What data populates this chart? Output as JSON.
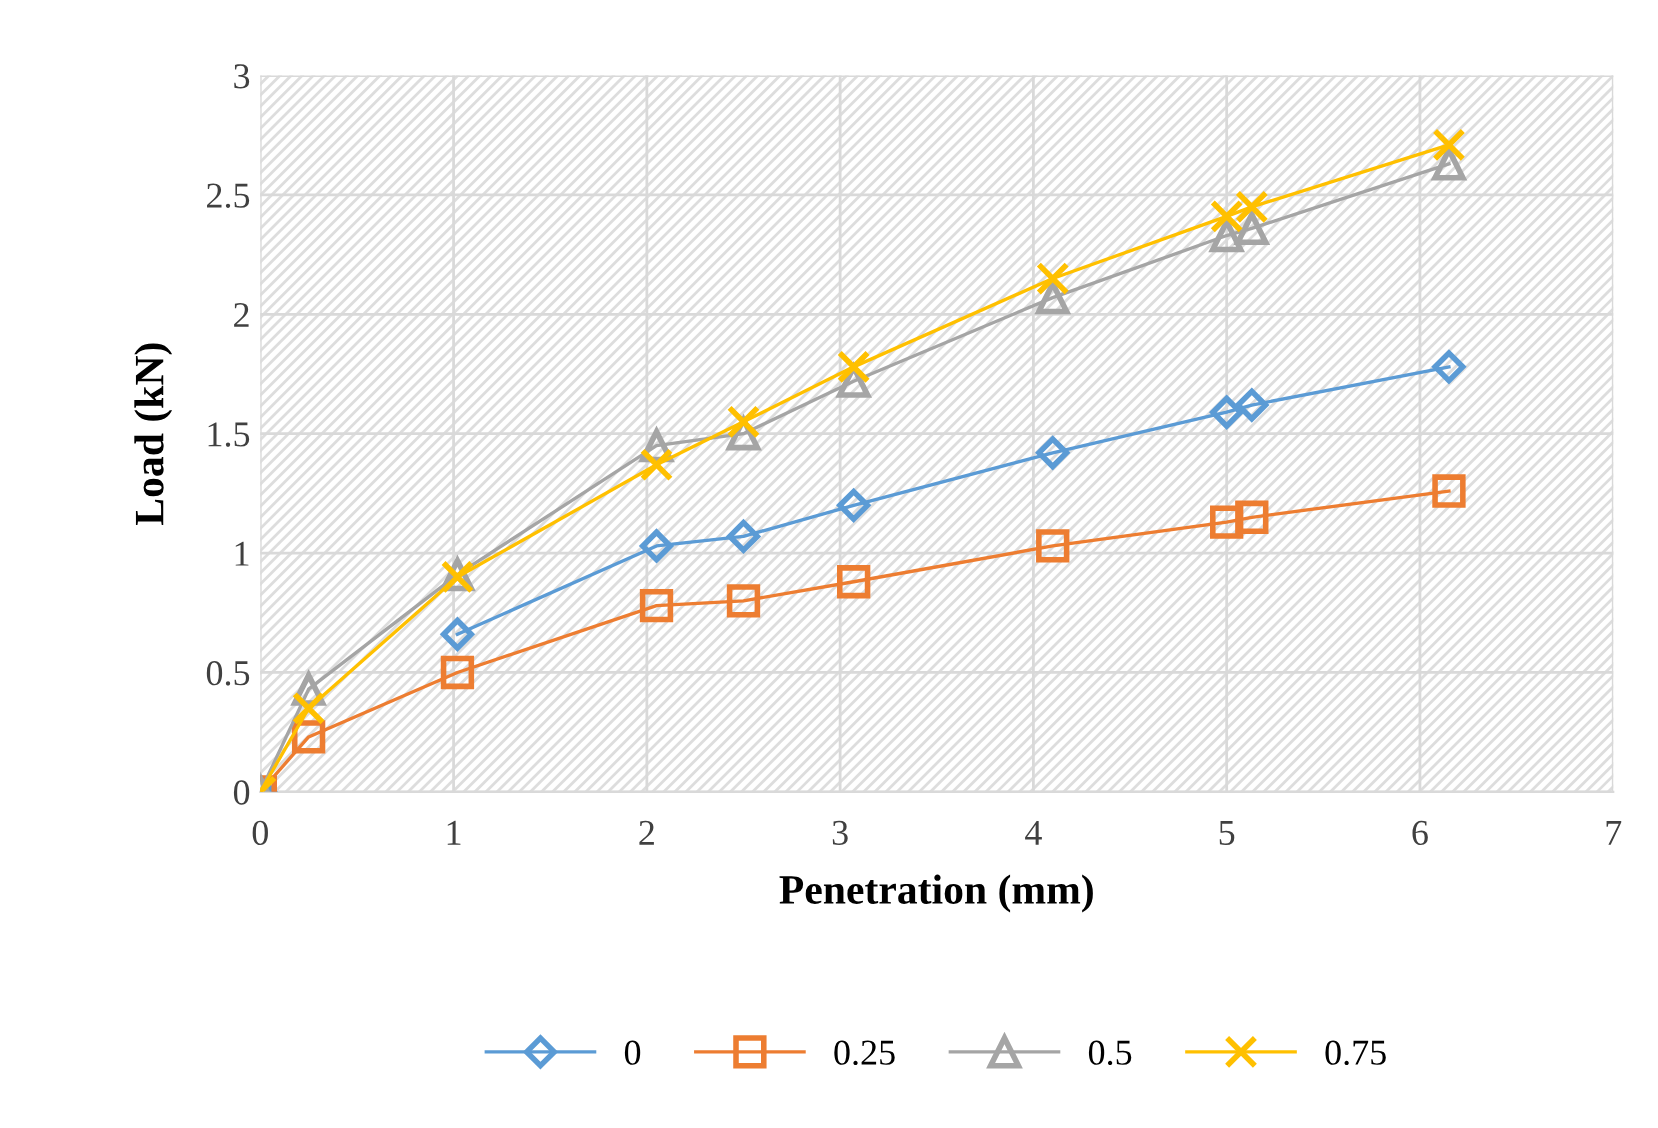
{
  "chart_data": {
    "type": "line",
    "xlabel": "Penetration (mm)",
    "ylabel": "Load (kN)",
    "x": [
      0,
      0.25,
      1.02,
      2.05,
      2.5,
      3.07,
      4.1,
      5.0,
      5.13,
      6.15
    ],
    "series": [
      {
        "name": "0",
        "color": "#5b9bd5",
        "marker": "diamond",
        "values": [
          0,
          null,
          0.66,
          1.03,
          1.07,
          1.2,
          1.42,
          1.59,
          1.62,
          1.78
        ]
      },
      {
        "name": "0.25",
        "color": "#ed7d31",
        "marker": "square",
        "values": [
          0,
          0.23,
          0.5,
          0.78,
          0.8,
          0.88,
          1.03,
          1.13,
          1.15,
          1.26
        ]
      },
      {
        "name": "0.5",
        "color": "#a5a5a5",
        "marker": "triangle",
        "values": [
          0,
          0.43,
          0.91,
          1.45,
          1.5,
          1.72,
          2.07,
          2.33,
          2.36,
          2.63
        ]
      },
      {
        "name": "0.75",
        "color": "#ffc000",
        "marker": "cross",
        "values": [
          0,
          0.35,
          0.9,
          1.37,
          1.55,
          1.78,
          2.15,
          2.41,
          2.45,
          2.71
        ]
      }
    ],
    "xlim": [
      0,
      7
    ],
    "xticks": [
      0,
      1,
      2,
      3,
      4,
      5,
      6,
      7
    ],
    "ylim": [
      0,
      3
    ],
    "yticks": [
      0,
      0.5,
      1,
      1.5,
      2,
      2.5,
      3
    ],
    "grid": true,
    "legend": "bottom"
  }
}
